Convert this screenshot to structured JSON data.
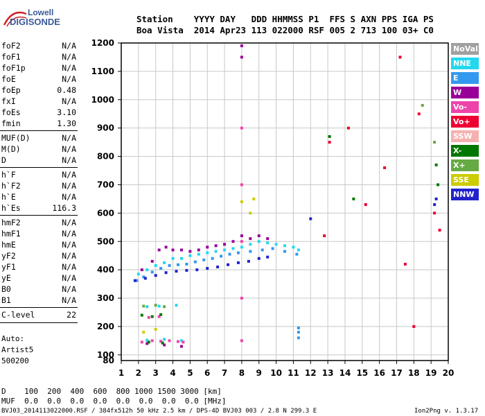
{
  "logo": {
    "line1": "Lowell",
    "line2": "DIGISONDE"
  },
  "header": {
    "row1": "Station    YYYY DAY   DDD HHMMSS P1  FFS S AXN PPS IGA PS",
    "row2": "Boa Vista  2014 Apr23 113 022000 RSF 005 2 713 100 03+ C0"
  },
  "params": [
    {
      "k": "foF2",
      "v": "N/A"
    },
    {
      "k": "foF1",
      "v": "N/A"
    },
    {
      "k": "foF1p",
      "v": "N/A"
    },
    {
      "k": "foE",
      "v": "N/A"
    },
    {
      "k": "foEp",
      "v": "0.48"
    },
    {
      "k": "fxI",
      "v": "N/A"
    },
    {
      "k": "foEs",
      "v": "3.10"
    },
    {
      "k": "fmin",
      "v": "1.30"
    },
    {
      "k": "MUF(D)",
      "v": "N/A"
    },
    {
      "k": "M(D)",
      "v": "N/A"
    },
    {
      "k": "D",
      "v": "N/A"
    },
    {
      "k": "h`F",
      "v": "N/A"
    },
    {
      "k": "h`F2",
      "v": "N/A"
    },
    {
      "k": "h`E",
      "v": "N/A"
    },
    {
      "k": "h`Es",
      "v": "116.3"
    },
    {
      "k": "hmF2",
      "v": "N/A"
    },
    {
      "k": "hmF1",
      "v": "N/A"
    },
    {
      "k": "hmE",
      "v": "N/A"
    },
    {
      "k": "yF2",
      "v": "N/A"
    },
    {
      "k": "yF1",
      "v": "N/A"
    },
    {
      "k": "yE",
      "v": "N/A"
    },
    {
      "k": "B0",
      "v": "N/A"
    },
    {
      "k": "B1",
      "v": "N/A"
    },
    {
      "k": "C-level",
      "v": "22"
    }
  ],
  "auto": {
    "l1": "Auto:",
    "l2": "Artist5",
    "l3": "500200"
  },
  "legend": [
    {
      "label": "NoVal",
      "color": "#a0a0a0"
    },
    {
      "label": "NNE",
      "color": "#22d8ee"
    },
    {
      "label": "E",
      "color": "#3399ee"
    },
    {
      "label": "W",
      "color": "#990099"
    },
    {
      "label": "Vo-",
      "color": "#ee44aa"
    },
    {
      "label": "Vo+",
      "color": "#ee0033"
    },
    {
      "label": "SSW",
      "color": "#f5b0b0"
    },
    {
      "label": "X-",
      "color": "#007700"
    },
    {
      "label": "X+",
      "color": "#66aa44"
    },
    {
      "label": "SSE",
      "color": "#cccc00"
    },
    {
      "label": "NNW",
      "color": "#2222cc"
    }
  ],
  "bottom": {
    "d_row": "D    100  200  400  600  800 1000 1500 3000 [km]",
    "muf_row": "MUF  0.0  0.0  0.0  0.0  0.0  0.0  0.0  0.0 [MHz]",
    "file_line": "BVJ03_2014113022000.RSF / 384fx512h 50 kHz 2.5 km / DPS-4D BVJ03 003 / 2.8 N 299.3 E",
    "version": "Ion2Png v. 1.3.17"
  },
  "chart_data": {
    "type": "scatter",
    "title": "",
    "xlabel": "",
    "ylabel": "",
    "xlim": [
      1,
      20
    ],
    "ylim": [
      80,
      1200
    ],
    "x_ticks": [
      1,
      2,
      3,
      4,
      5,
      6,
      7,
      8,
      9,
      10,
      11,
      12,
      13,
      14,
      15,
      16,
      17,
      18,
      19,
      20
    ],
    "y_ticks": [
      100,
      200,
      300,
      400,
      500,
      600,
      700,
      800,
      900,
      1000,
      1100,
      1200
    ],
    "y_tick_labels": [
      "100",
      "200",
      "300",
      "400",
      "500",
      "600",
      "700",
      "800",
      "900",
      "1000",
      "1100",
      "1200"
    ],
    "bottom_label": "80",
    "grid": true,
    "series": [
      {
        "name": "NNE",
        "color": "#22d8ee",
        "points": [
          [
            2.0,
            385
          ],
          [
            2.5,
            400
          ],
          [
            3,
            415
          ],
          [
            3.5,
            425
          ],
          [
            4,
            440
          ],
          [
            4.5,
            440
          ],
          [
            5,
            450
          ],
          [
            5.5,
            455
          ],
          [
            6,
            460
          ],
          [
            6.5,
            465
          ],
          [
            7,
            470
          ],
          [
            7.5,
            475
          ],
          [
            8,
            480
          ],
          [
            8.5,
            490
          ],
          [
            9,
            500
          ],
          [
            9.5,
            495
          ],
          [
            10,
            490
          ],
          [
            10.5,
            485
          ],
          [
            11,
            480
          ],
          [
            11.3,
            470
          ],
          [
            2.5,
            270
          ],
          [
            3.2,
            272
          ],
          [
            4.2,
            275
          ],
          [
            2.5,
            152
          ],
          [
            3.5,
            155
          ],
          [
            4.5,
            150
          ]
        ]
      },
      {
        "name": "E",
        "color": "#3399ee",
        "points": [
          [
            1.9,
            362
          ],
          [
            2.3,
            375
          ],
          [
            2.8,
            392
          ],
          [
            3.3,
            405
          ],
          [
            3.8,
            415
          ],
          [
            4.3,
            418
          ],
          [
            4.8,
            420
          ],
          [
            5.3,
            428
          ],
          [
            5.8,
            435
          ],
          [
            6.3,
            440
          ],
          [
            6.8,
            448
          ],
          [
            7.3,
            455
          ],
          [
            7.8,
            460
          ],
          [
            8.5,
            465
          ],
          [
            9.2,
            470
          ],
          [
            9.8,
            475
          ],
          [
            10.5,
            465
          ],
          [
            11.2,
            455
          ],
          [
            11.3,
            195
          ],
          [
            11.3,
            180
          ],
          [
            11.3,
            160
          ]
        ]
      },
      {
        "name": "W",
        "color": "#990099",
        "points": [
          [
            2.2,
            400
          ],
          [
            2.8,
            430
          ],
          [
            3.2,
            470
          ],
          [
            3.6,
            480
          ],
          [
            4.0,
            470
          ],
          [
            4.5,
            470
          ],
          [
            5.0,
            465
          ],
          [
            5.5,
            470
          ],
          [
            6.0,
            480
          ],
          [
            6.5,
            485
          ],
          [
            7.0,
            490
          ],
          [
            7.5,
            500
          ],
          [
            8.0,
            520
          ],
          [
            8.5,
            510
          ],
          [
            9.0,
            520
          ],
          [
            9.5,
            510
          ],
          [
            8.0,
            1190
          ],
          [
            8.0,
            1150
          ],
          [
            2.5,
            140
          ],
          [
            3.5,
            135
          ],
          [
            4.5,
            130
          ]
        ]
      },
      {
        "name": "Vo-",
        "color": "#ee44aa",
        "points": [
          [
            2.2,
            145
          ],
          [
            2.8,
            150
          ],
          [
            3.3,
            148
          ],
          [
            3.8,
            150
          ],
          [
            4.3,
            147
          ],
          [
            4.6,
            145
          ],
          [
            2.6,
            232
          ],
          [
            3.2,
            235
          ],
          [
            8.0,
            900
          ],
          [
            8.0,
            700
          ],
          [
            8.0,
            500
          ],
          [
            8.0,
            300
          ],
          [
            8.0,
            150
          ]
        ]
      },
      {
        "name": "Vo+",
        "color": "#ee0033",
        "points": [
          [
            13.1,
            850
          ],
          [
            14.2,
            900
          ],
          [
            15.2,
            630
          ],
          [
            16.3,
            760
          ],
          [
            17.2,
            1150
          ],
          [
            18.3,
            950
          ],
          [
            19.2,
            600
          ],
          [
            19.5,
            540
          ],
          [
            12.8,
            520
          ],
          [
            17.5,
            420
          ],
          [
            18.0,
            200
          ]
        ]
      },
      {
        "name": "X-",
        "color": "#007700",
        "points": [
          [
            2.2,
            240
          ],
          [
            2.8,
            235
          ],
          [
            3.3,
            242
          ],
          [
            2.6,
            145
          ],
          [
            3.4,
            142
          ],
          [
            13.1,
            870
          ],
          [
            14.5,
            650
          ],
          [
            19.3,
            770
          ],
          [
            19.4,
            700
          ]
        ]
      },
      {
        "name": "X+",
        "color": "#66aa44",
        "points": [
          [
            2.3,
            272
          ],
          [
            3.0,
            275
          ],
          [
            3.5,
            270
          ],
          [
            18.5,
            980
          ],
          [
            19.2,
            850
          ]
        ]
      },
      {
        "name": "SSE",
        "color": "#cccc00",
        "points": [
          [
            2.3,
            180
          ],
          [
            8.0,
            640
          ],
          [
            8.5,
            600
          ],
          [
            8.7,
            650
          ],
          [
            3.0,
            190
          ]
        ]
      },
      {
        "name": "NNW",
        "color": "#2222cc",
        "points": [
          [
            1.8,
            362
          ],
          [
            2.4,
            370
          ],
          [
            3.0,
            380
          ],
          [
            3.6,
            390
          ],
          [
            4.2,
            395
          ],
          [
            4.8,
            398
          ],
          [
            5.4,
            400
          ],
          [
            6.0,
            405
          ],
          [
            6.6,
            410
          ],
          [
            7.2,
            418
          ],
          [
            7.8,
            425
          ],
          [
            8.4,
            430
          ],
          [
            9.0,
            440
          ],
          [
            9.5,
            445
          ],
          [
            19.2,
            630
          ],
          [
            19.3,
            650
          ],
          [
            12.0,
            580
          ]
        ]
      }
    ]
  }
}
